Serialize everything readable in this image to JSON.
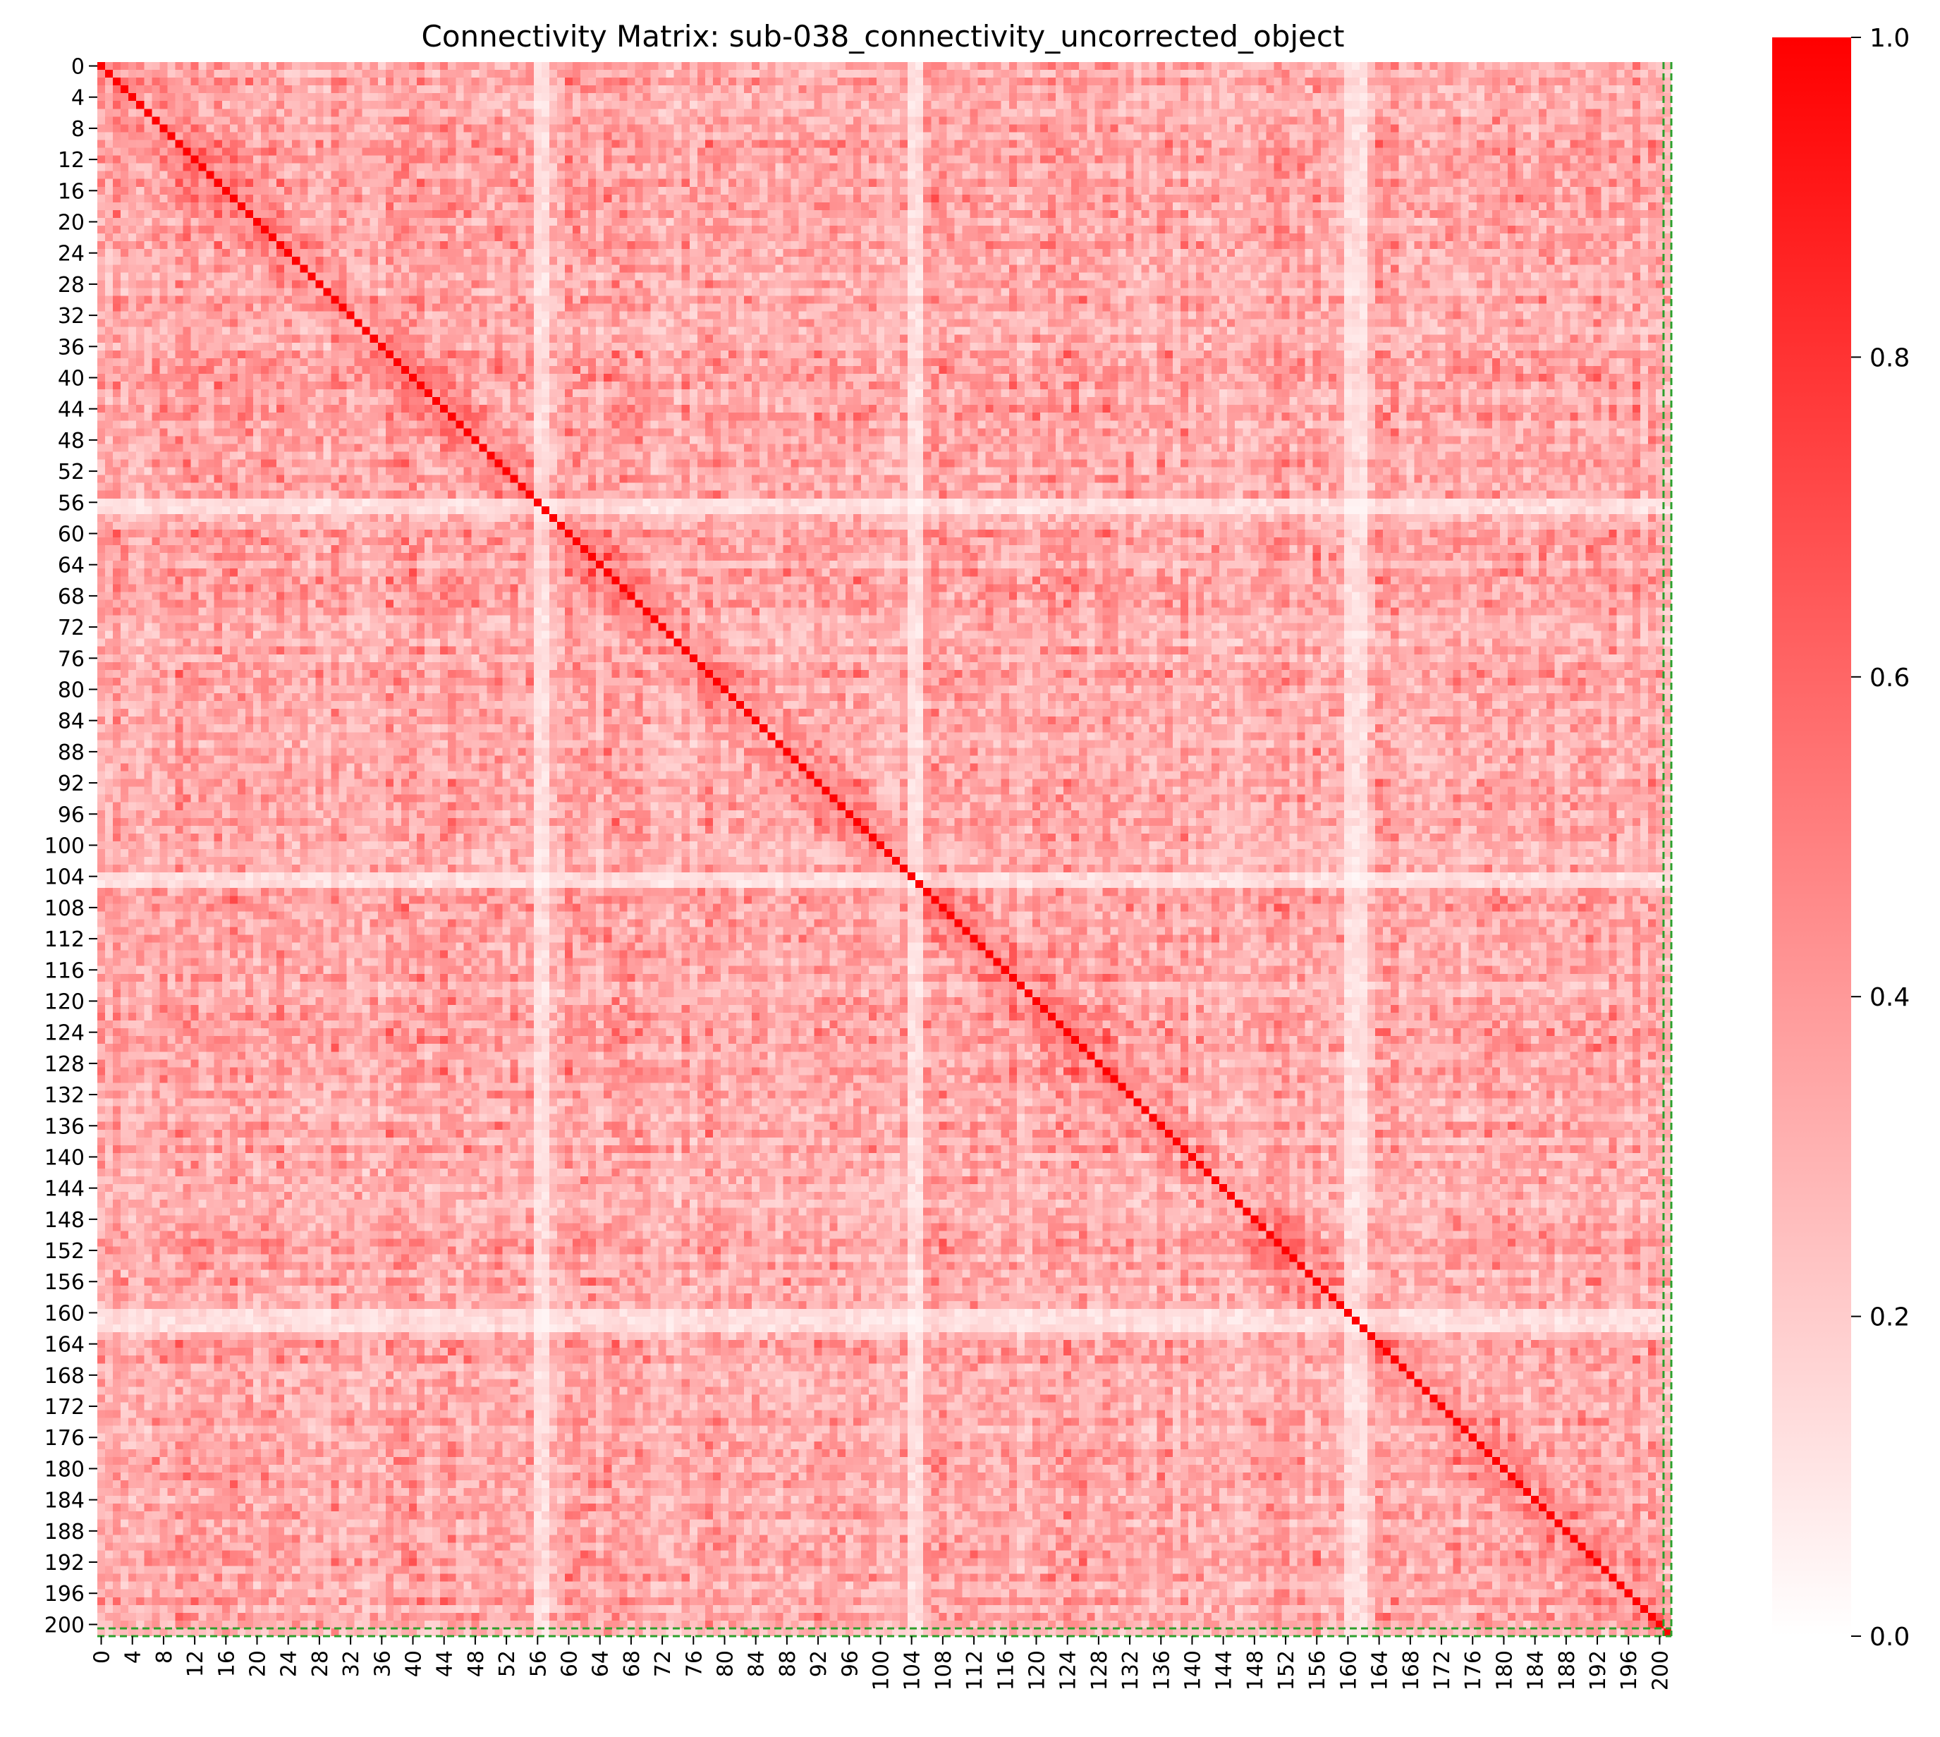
{
  "chart_data": {
    "type": "heatmap",
    "title": "Connectivity Matrix: sub-038_connectivity_uncorrected_object",
    "n": 202,
    "x_ticks": [
      0,
      4,
      8,
      12,
      16,
      20,
      24,
      28,
      32,
      36,
      40,
      44,
      48,
      52,
      56,
      60,
      64,
      68,
      72,
      76,
      80,
      84,
      88,
      92,
      96,
      100,
      104,
      108,
      112,
      116,
      120,
      124,
      128,
      132,
      136,
      140,
      144,
      148,
      152,
      156,
      160,
      164,
      168,
      172,
      176,
      180,
      184,
      188,
      192,
      196,
      200
    ],
    "y_ticks": [
      0,
      4,
      8,
      12,
      16,
      20,
      24,
      28,
      32,
      36,
      40,
      44,
      48,
      52,
      56,
      60,
      64,
      68,
      72,
      76,
      80,
      84,
      88,
      92,
      96,
      100,
      104,
      108,
      112,
      116,
      120,
      124,
      128,
      132,
      136,
      140,
      144,
      148,
      152,
      156,
      160,
      164,
      168,
      172,
      176,
      180,
      184,
      188,
      192,
      196,
      200
    ],
    "colorbar": {
      "vmin": 0.0,
      "vmax": 1.0,
      "ticks": [
        "0.0",
        "0.2",
        "0.4",
        "0.6",
        "0.8",
        "1.0"
      ],
      "color_low": "#ffffff",
      "color_high": "#ff0000"
    },
    "diagonal_value": 1.0,
    "low_connectivity_nodes": [
      56,
      57,
      104,
      105,
      160,
      161,
      162
    ],
    "highlight": {
      "nodes": [
        201
      ],
      "line_color": "#2ca02c",
      "line_style": "dashed"
    }
  }
}
